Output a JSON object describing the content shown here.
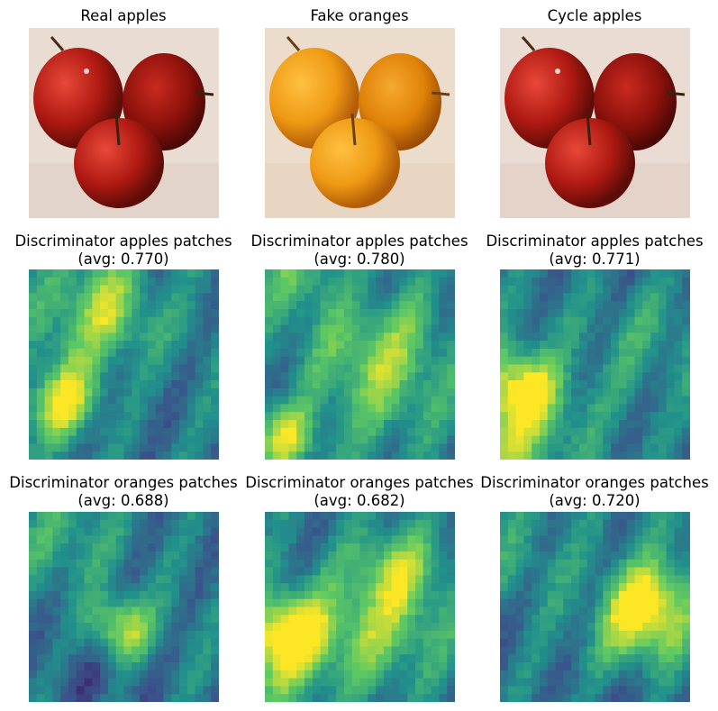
{
  "row1": {
    "titles": [
      "Real apples",
      "Fake oranges",
      "Cycle apples"
    ]
  },
  "row2": {
    "title": "Discriminator apples patches",
    "avgs": [
      "(avg: 0.770)",
      "(avg: 0.780)",
      "(avg: 0.771)"
    ]
  },
  "row3": {
    "title": "Discriminator oranges patches",
    "avgs": [
      "(avg: 0.688)",
      "(avg: 0.682)",
      "(avg: 0.720)"
    ]
  },
  "colormap": "viridis"
}
